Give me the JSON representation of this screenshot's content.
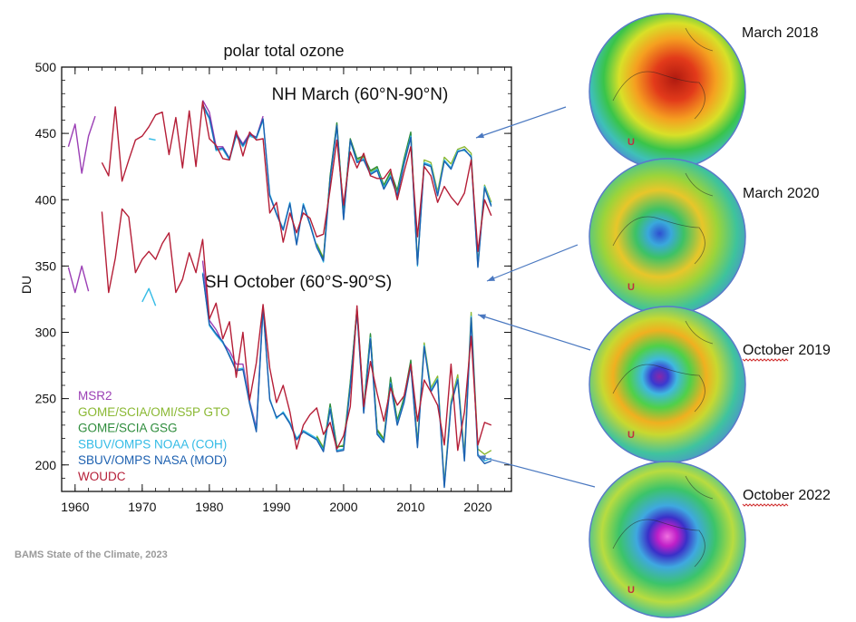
{
  "chart_data": {
    "type": "line",
    "title": "polar total ozone",
    "ylabel": "DU",
    "xlabel": "",
    "xlim": [
      1958,
      2025
    ],
    "ylim": [
      180,
      500
    ],
    "xticks": [
      1960,
      1970,
      1980,
      1990,
      2000,
      2010,
      2020
    ],
    "yticks": [
      200,
      250,
      300,
      350,
      400,
      450,
      500
    ],
    "grid": false,
    "legend_position": "bottom-left",
    "annotations": [
      "NH March (60°N-90°N)",
      "SH October (60°S-90°S)"
    ],
    "series": [
      {
        "name": "MSR2",
        "color": "#9b3fb5",
        "group": "NH",
        "x": [
          1959,
          1960,
          1961,
          1962,
          1963,
          1979,
          1980,
          1981,
          1982,
          1983,
          1984,
          1985,
          1986,
          1987,
          1988
        ],
        "y": [
          440,
          457,
          420,
          448,
          463,
          475,
          466,
          440,
          440,
          431,
          450,
          442,
          450,
          447,
          463
        ]
      },
      {
        "name": "MSR2",
        "color": "#9b3fb5",
        "group": "SH",
        "x": [
          1959,
          1960,
          1961,
          1962,
          1979,
          1980,
          1981,
          1982,
          1983,
          1984,
          1985,
          1986,
          1987,
          1988
        ],
        "y": [
          349,
          330,
          350,
          331,
          354,
          309,
          302,
          292,
          286,
          276,
          276,
          248,
          228,
          320
        ]
      },
      {
        "name": "GOME/SCIA/OMI/S5P GTO",
        "color": "#8ab832",
        "group": "NH",
        "x": [
          1996,
          1997,
          1998,
          1999,
          2000,
          2001,
          2002,
          2003,
          2004,
          2005,
          2006,
          2007,
          2008,
          2009,
          2010,
          2011,
          2012,
          2013,
          2014,
          2015,
          2016,
          2017,
          2018,
          2019,
          2020,
          2021,
          2022
        ],
        "y": [
          367,
          356,
          418,
          457,
          388,
          445,
          430,
          432,
          421,
          424,
          411,
          420,
          406,
          430,
          450,
          352,
          430,
          428,
          406,
          432,
          427,
          438,
          440,
          435,
          352,
          411,
          398
        ]
      },
      {
        "name": "GOME/SCIA/OMI/S5P GTO",
        "color": "#8ab832",
        "group": "SH",
        "x": [
          1996,
          1997,
          1998,
          1999,
          2000,
          2001,
          2002,
          2003,
          2004,
          2005,
          2006,
          2007,
          2008,
          2009,
          2010,
          2011,
          2012,
          2013,
          2014,
          2015,
          2016,
          2017,
          2018,
          2019,
          2020,
          2021,
          2022
        ],
        "y": [
          222,
          213,
          245,
          213,
          215,
          263,
          317,
          242,
          298,
          227,
          220,
          265,
          234,
          250,
          278,
          217,
          292,
          258,
          267,
          186,
          248,
          268,
          207,
          315,
          212,
          208,
          211
        ]
      },
      {
        "name": "GOME/SCIA GSG",
        "color": "#2e8c3c",
        "group": "NH",
        "x": [
          1996,
          1997,
          1998,
          1999,
          2000,
          2001,
          2002,
          2003,
          2004,
          2005,
          2006,
          2007,
          2008,
          2009,
          2010,
          2011
        ],
        "y": [
          366,
          355,
          418,
          458,
          389,
          446,
          431,
          433,
          422,
          425,
          411,
          421,
          407,
          431,
          451,
          353
        ]
      },
      {
        "name": "GOME/SCIA GSG",
        "color": "#2e8c3c",
        "group": "SH",
        "x": [
          1996,
          1997,
          1998,
          1999,
          2000,
          2001,
          2002,
          2003,
          2004,
          2005,
          2006,
          2007,
          2008,
          2009,
          2010,
          2011
        ],
        "y": [
          221,
          212,
          246,
          214,
          214,
          262,
          318,
          243,
          299,
          226,
          219,
          266,
          233,
          251,
          279,
          216
        ]
      },
      {
        "name": "SBUV/OMPS NOAA (COH)",
        "color": "#33bbe6",
        "group": "NH",
        "x": [
          1971,
          1972,
          1979,
          1980,
          1981,
          1982,
          1983,
          1984,
          1985,
          1986,
          1987,
          1988,
          1989,
          1990,
          1991,
          1992,
          1993,
          1994,
          1995,
          1996,
          1997,
          1998,
          1999,
          2000,
          2001,
          2002,
          2003,
          2004,
          2005,
          2006,
          2007,
          2008,
          2009,
          2010,
          2011,
          2012,
          2013,
          2014,
          2015,
          2016,
          2017,
          2018,
          2019,
          2020,
          2021,
          2022
        ],
        "y": [
          446,
          445,
          470,
          461,
          437,
          438,
          430,
          448,
          440,
          448,
          446,
          460,
          404,
          390,
          378,
          398,
          367,
          397,
          382,
          365,
          353,
          415,
          455,
          386,
          444,
          429,
          431,
          420,
          423,
          409,
          418,
          404,
          428,
          448,
          350,
          428,
          426,
          404,
          430,
          424,
          437,
          437,
          433,
          350,
          410,
          396
        ]
      },
      {
        "name": "SBUV/OMPS NOAA (COH)",
        "color": "#33bbe6",
        "group": "SH",
        "x": [
          1970,
          1971,
          1972,
          1979,
          1980,
          1981,
          1982,
          1983,
          1984,
          1985,
          1986,
          1987,
          1988,
          1989,
          1990,
          1991,
          1992,
          1993,
          1994,
          1995,
          1996,
          1997,
          1998,
          1999,
          2000,
          2001,
          2002,
          2003,
          2004,
          2005,
          2006,
          2007,
          2008,
          2009,
          2010,
          2011,
          2012,
          2013,
          2014,
          2015,
          2016,
          2017,
          2018,
          2019,
          2020,
          2021,
          2022
        ],
        "y": [
          323,
          333,
          320,
          345,
          305,
          298,
          292,
          283,
          272,
          273,
          247,
          226,
          318,
          250,
          235,
          240,
          232,
          220,
          226,
          223,
          220,
          211,
          243,
          211,
          212,
          260,
          316,
          240,
          296,
          224,
          218,
          262,
          231,
          248,
          276,
          214,
          290,
          256,
          265,
          184,
          246,
          265,
          204,
          312,
          208,
          203,
          205
        ]
      },
      {
        "name": "SBUV/OMPS NASA (MOD)",
        "color": "#1c60b0",
        "group": "NH",
        "x": [
          1979,
          1980,
          1981,
          1982,
          1983,
          1984,
          1985,
          1986,
          1987,
          1988,
          1989,
          1990,
          1991,
          1992,
          1993,
          1994,
          1995,
          1996,
          1997,
          1998,
          1999,
          2000,
          2001,
          2002,
          2003,
          2004,
          2005,
          2006,
          2007,
          2008,
          2009,
          2010,
          2011,
          2012,
          2013,
          2014,
          2015,
          2016,
          2017,
          2018,
          2019,
          2020,
          2021,
          2022
        ],
        "y": [
          472,
          462,
          438,
          439,
          431,
          449,
          441,
          449,
          447,
          461,
          403,
          389,
          377,
          397,
          366,
          396,
          381,
          364,
          354,
          416,
          456,
          385,
          445,
          428,
          430,
          419,
          422,
          408,
          417,
          403,
          427,
          447,
          351,
          427,
          425,
          403,
          429,
          423,
          436,
          438,
          432,
          349,
          409,
          395
        ]
      },
      {
        "name": "SBUV/OMPS NASA (MOD)",
        "color": "#1c60b0",
        "group": "SH",
        "x": [
          1979,
          1980,
          1981,
          1982,
          1983,
          1984,
          1985,
          1986,
          1987,
          1988,
          1989,
          1990,
          1991,
          1992,
          1993,
          1994,
          1995,
          1996,
          1997,
          1998,
          1999,
          2000,
          2001,
          2002,
          2003,
          2004,
          2005,
          2006,
          2007,
          2008,
          2009,
          2010,
          2011,
          2012,
          2013,
          2014,
          2015,
          2016,
          2017,
          2018,
          2019,
          2020,
          2021,
          2022
        ],
        "y": [
          344,
          306,
          299,
          293,
          282,
          271,
          272,
          246,
          225,
          319,
          249,
          236,
          239,
          231,
          219,
          225,
          222,
          219,
          210,
          242,
          210,
          211,
          259,
          315,
          239,
          295,
          223,
          217,
          261,
          230,
          247,
          275,
          213,
          289,
          255,
          264,
          183,
          245,
          264,
          203,
          311,
          207,
          201,
          203
        ]
      },
      {
        "name": "WOUDC",
        "color": "#b51e37",
        "group": "NH",
        "x": [
          1964,
          1965,
          1966,
          1967,
          1968,
          1969,
          1970,
          1971,
          1972,
          1973,
          1974,
          1975,
          1976,
          1977,
          1978,
          1979,
          1980,
          1981,
          1982,
          1983,
          1984,
          1985,
          1986,
          1987,
          1988,
          1989,
          1990,
          1991,
          1992,
          1993,
          1994,
          1995,
          1996,
          1997,
          1998,
          1999,
          2000,
          2001,
          2002,
          2003,
          2004,
          2005,
          2006,
          2007,
          2008,
          2009,
          2010,
          2011,
          2012,
          2013,
          2014,
          2015,
          2016,
          2017,
          2018,
          2019,
          2020,
          2021,
          2022
        ],
        "y": [
          428,
          418,
          470,
          414,
          430,
          445,
          448,
          455,
          464,
          466,
          434,
          462,
          424,
          467,
          425,
          474,
          446,
          441,
          431,
          430,
          452,
          433,
          451,
          445,
          446,
          390,
          398,
          368,
          390,
          375,
          390,
          386,
          372,
          374,
          408,
          445,
          396,
          436,
          424,
          435,
          418,
          416,
          416,
          423,
          400,
          421,
          440,
          372,
          425,
          418,
          398,
          410,
          402,
          396,
          405,
          430,
          361,
          400,
          388
        ]
      },
      {
        "name": "WOUDC",
        "color": "#b51e37",
        "group": "SH",
        "x": [
          1964,
          1965,
          1966,
          1967,
          1968,
          1969,
          1970,
          1971,
          1972,
          1973,
          1974,
          1975,
          1976,
          1977,
          1978,
          1979,
          1980,
          1981,
          1982,
          1983,
          1984,
          1985,
          1986,
          1987,
          1988,
          1989,
          1990,
          1991,
          1992,
          1993,
          1994,
          1995,
          1996,
          1997,
          1998,
          1999,
          2000,
          2001,
          2002,
          2003,
          2004,
          2005,
          2006,
          2007,
          2008,
          2009,
          2010,
          2011,
          2012,
          2013,
          2014,
          2015,
          2016,
          2017,
          2018,
          2019,
          2020,
          2021,
          2022
        ],
        "y": [
          391,
          330,
          356,
          393,
          387,
          345,
          355,
          361,
          355,
          367,
          375,
          330,
          340,
          360,
          345,
          370,
          310,
          322,
          295,
          308,
          266,
          300,
          249,
          277,
          321,
          273,
          247,
          260,
          240,
          212,
          230,
          238,
          243,
          223,
          232,
          212,
          222,
          244,
          320,
          244,
          278,
          254,
          233,
          258,
          245,
          252,
          276,
          233,
          264,
          255,
          245,
          215,
          276,
          211,
          240,
          297,
          215,
          232,
          230
        ]
      }
    ]
  },
  "maps": [
    {
      "label": "March 2018",
      "scheme": "nh-high",
      "logo": "U"
    },
    {
      "label": "March 2020",
      "scheme": "nh-low",
      "logo": "U"
    },
    {
      "label": "October 2019",
      "scheme": "sh-weak",
      "logo": "U"
    },
    {
      "label": "October 2022",
      "scheme": "sh-deep",
      "logo": "U"
    }
  ],
  "credit": "BAMS State of the Climate, 2023"
}
